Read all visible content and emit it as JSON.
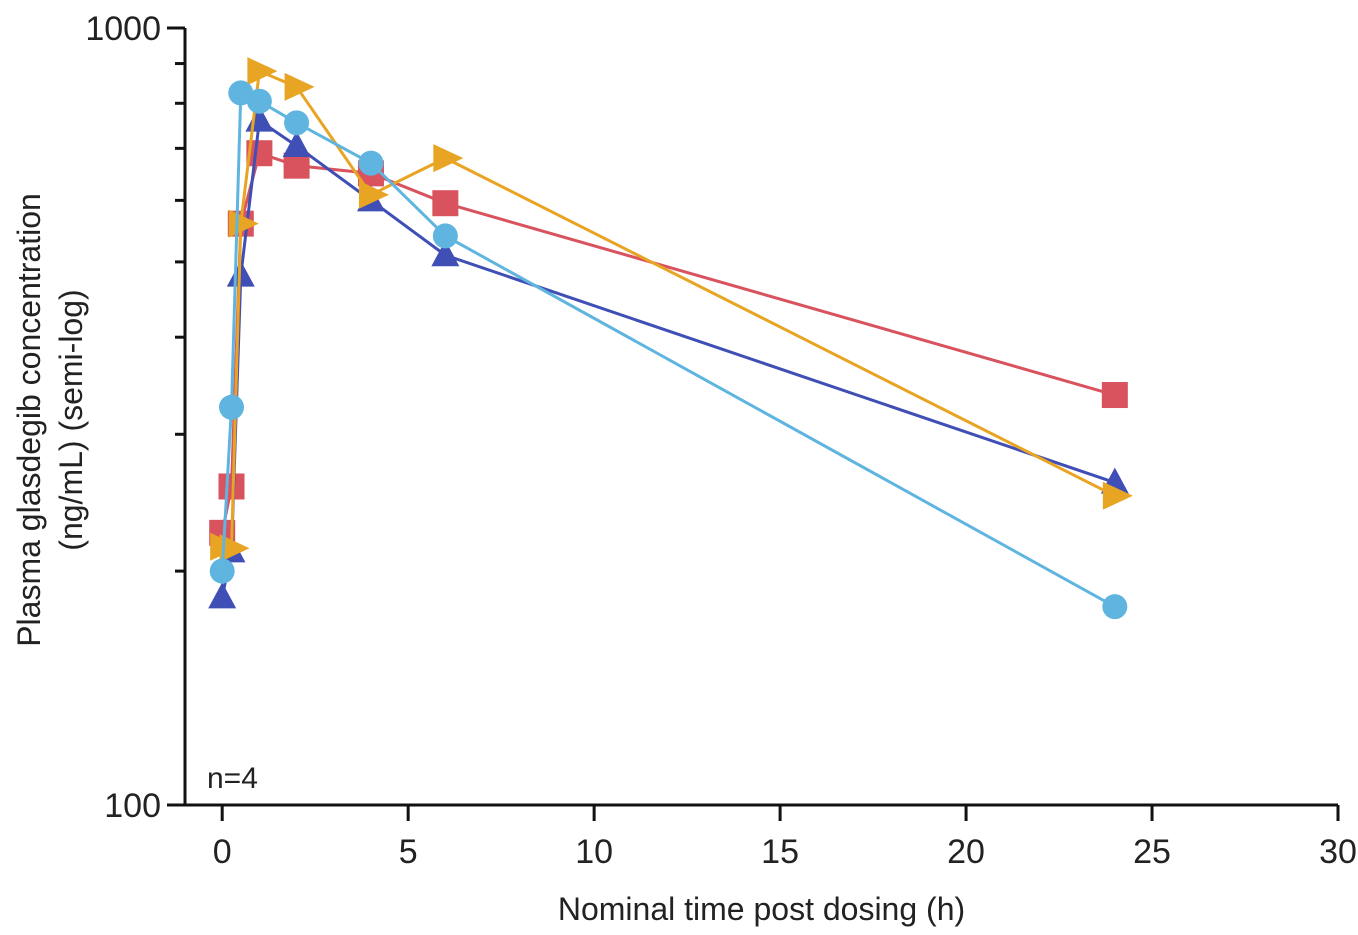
{
  "chart_data": {
    "type": "line",
    "title": "",
    "xlabel": "Nominal time post dosing (h)",
    "ylabel": [
      "Plasma glasdegib concentration",
      "(ng/mL) (semi-log)"
    ],
    "x_scale": "linear",
    "y_scale": "log",
    "xlim": [
      -1,
      30
    ],
    "ylim": [
      100,
      1000
    ],
    "x_ticks": [
      0,
      5,
      10,
      15,
      20,
      25,
      30
    ],
    "x_tick_labels": [
      "0",
      "5",
      "10",
      "15",
      "20",
      "25",
      "30"
    ],
    "y_ticks": [
      100,
      1000
    ],
    "y_tick_labels": [
      "100",
      "1000"
    ],
    "y_minor_ticks": [
      200,
      300,
      400,
      500,
      600,
      700,
      800,
      900
    ],
    "grid": false,
    "legend": "none",
    "annotation": "n=4",
    "series": [
      {
        "color": "#d9535f",
        "marker": "square",
        "x": [
          0,
          0.25,
          0.5,
          1,
          2,
          4,
          6,
          24
        ],
        "y": [
          224,
          257,
          560,
          690,
          665,
          650,
          595,
          337
        ]
      },
      {
        "color": "#3f4fb5",
        "marker": "triangle-up",
        "x": [
          0,
          0.25,
          0.5,
          1,
          2,
          4,
          6,
          24
        ],
        "y": [
          185,
          212,
          480,
          760,
          705,
          600,
          510,
          260
        ]
      },
      {
        "color": "#e8a423",
        "marker": "triangle-right",
        "x": [
          0,
          0.25,
          0.5,
          1,
          2,
          4,
          6,
          24
        ],
        "y": [
          215,
          214,
          560,
          880,
          840,
          610,
          680,
          250
        ]
      },
      {
        "color": "#5fb5e0",
        "marker": "circle",
        "x": [
          0,
          0.25,
          0.5,
          1,
          2,
          4,
          6,
          24
        ],
        "y": [
          200,
          325,
          825,
          805,
          755,
          670,
          540,
          180
        ]
      }
    ]
  }
}
